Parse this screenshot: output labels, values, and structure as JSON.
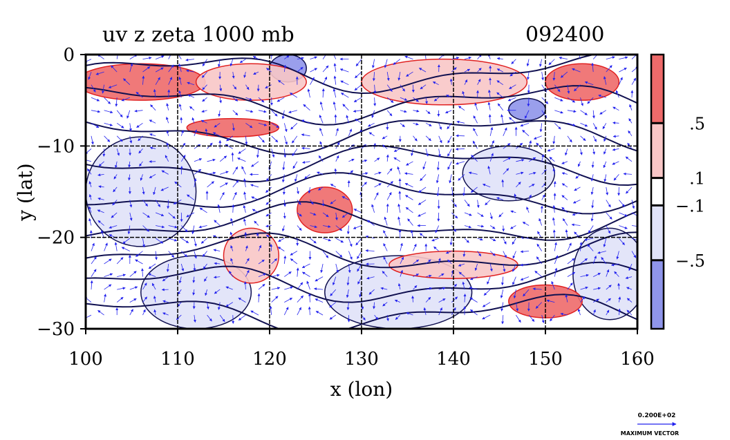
{
  "chart_data": {
    "type": "heatmap",
    "title": "uv z zeta 1000 mb",
    "time_label": "092400",
    "xlabel": "x (lon)",
    "ylabel": "y (lat)",
    "xlim": [
      100,
      160
    ],
    "ylim": [
      -30,
      0
    ],
    "x_ticks": [
      {
        "value": 100,
        "label": "100"
      },
      {
        "value": 110,
        "label": "110"
      },
      {
        "value": 120,
        "label": "120"
      },
      {
        "value": 130,
        "label": "130"
      },
      {
        "value": 140,
        "label": "140"
      },
      {
        "value": 150,
        "label": "150"
      },
      {
        "value": 160,
        "label": "160"
      }
    ],
    "y_ticks": [
      {
        "value": 0,
        "label": "0"
      },
      {
        "value": -10,
        "label": "−10"
      },
      {
        "value": -20,
        "label": "−20"
      },
      {
        "value": -30,
        "label": "−30"
      }
    ],
    "grid": true,
    "grid_x": [
      110,
      120,
      130,
      140,
      150
    ],
    "grid_y": [
      -10,
      -20
    ],
    "colorbar": {
      "placement": "right",
      "levels": [
        {
          "range": [
            0.5,
            1.0
          ],
          "color": "#ee6a6a"
        },
        {
          "range": [
            0.1,
            0.5
          ],
          "color": "#f8c6c6"
        },
        {
          "range": [
            -0.1,
            0.1
          ],
          "color": "#ffffff"
        },
        {
          "range": [
            -0.5,
            -0.1
          ],
          "color": "#e0e2f8"
        },
        {
          "range": [
            -1.0,
            -0.5
          ],
          "color": "#8f95ea"
        }
      ],
      "boundaries": [
        {
          "value": 0.5,
          "label": ".5"
        },
        {
          "value": 0.1,
          "label": ".1"
        },
        {
          "value": -0.1,
          "label": "−.1"
        },
        {
          "value": -0.5,
          "label": "−.5"
        }
      ]
    },
    "vector_legend": {
      "value_label": "0.200E+02",
      "caption": "MAXIMUM VECTOR",
      "color": "#2222ee"
    },
    "colors": {
      "vectors": "#2222ee",
      "contours": "#101050",
      "positive_contours": "#e02020",
      "frame": "#000000"
    },
    "regions": {
      "positive": [
        {
          "lon": 106,
          "lat": -3,
          "rx": 7,
          "ry": 2,
          "level": 0.5
        },
        {
          "lon": 118,
          "lat": -3,
          "rx": 6,
          "ry": 2,
          "level": 0.3
        },
        {
          "lon": 139,
          "lat": -3,
          "rx": 9,
          "ry": 2.5,
          "level": 0.3
        },
        {
          "lon": 154,
          "lat": -3,
          "rx": 4,
          "ry": 2,
          "level": 0.5
        },
        {
          "lon": 118,
          "lat": -22,
          "rx": 3,
          "ry": 3,
          "level": 0.3
        },
        {
          "lon": 126,
          "lat": -17,
          "rx": 3,
          "ry": 2.5,
          "level": 0.5
        },
        {
          "lon": 140,
          "lat": -23,
          "rx": 7,
          "ry": 1.5,
          "level": 0.3
        },
        {
          "lon": 150,
          "lat": -27,
          "rx": 4,
          "ry": 1.8,
          "level": 0.5
        },
        {
          "lon": 116,
          "lat": -8,
          "rx": 5,
          "ry": 1,
          "level": 0.5
        }
      ],
      "negative": [
        {
          "lon": 106,
          "lat": -15,
          "rx": 6,
          "ry": 6,
          "level": -0.3
        },
        {
          "lon": 112,
          "lat": -26,
          "rx": 6,
          "ry": 4,
          "level": -0.3
        },
        {
          "lon": 134,
          "lat": -26,
          "rx": 8,
          "ry": 4,
          "level": -0.3
        },
        {
          "lon": 146,
          "lat": -13,
          "rx": 5,
          "ry": 3,
          "level": -0.3
        },
        {
          "lon": 157,
          "lat": -24,
          "rx": 4,
          "ry": 5,
          "level": -0.3
        },
        {
          "lon": 122,
          "lat": -1.5,
          "rx": 2,
          "ry": 1.5,
          "level": -0.7
        },
        {
          "lon": 148,
          "lat": -6,
          "rx": 2,
          "ry": 1.2,
          "level": -0.7
        }
      ]
    }
  }
}
